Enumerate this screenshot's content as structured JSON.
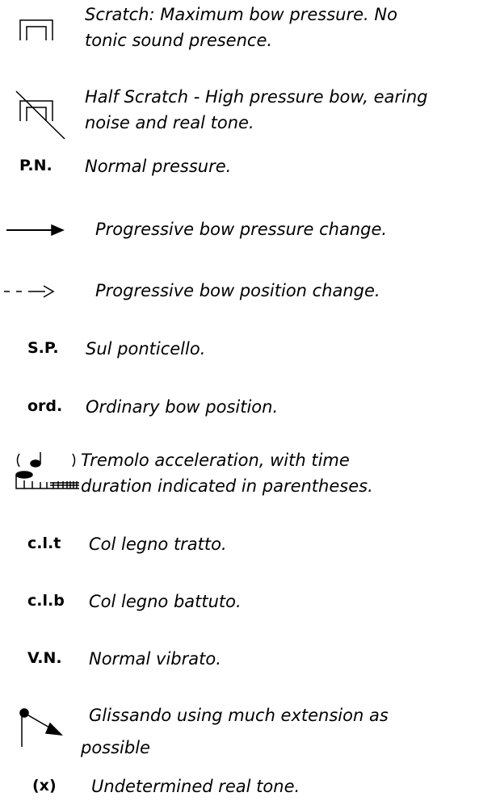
{
  "items": [
    {
      "description": [
        "Scratch: Maximum bow pressure. No",
        "tonic sound presence."
      ]
    },
    {
      "description": [
        "Half Scratch - High pressure bow, earing",
        "noise and real tone."
      ]
    },
    {
      "symbol": "P.N.",
      "description": [
        "Normal pressure."
      ]
    },
    {
      "description": [
        "Progressive bow pressure change."
      ]
    },
    {
      "description": [
        "Progressive bow position change."
      ]
    },
    {
      "symbol": "S.P.",
      "description": [
        "Sul ponticello."
      ]
    },
    {
      "symbol": "ord.",
      "description": [
        "Ordinary bow position."
      ]
    },
    {
      "description": [
        "Tremolo acceleration, with time",
        "duration indicated in parentheses."
      ]
    },
    {
      "symbol": "c.l.t",
      "description": [
        "Col legno tratto."
      ]
    },
    {
      "symbol": "c.l.b",
      "description": [
        "Col legno battuto."
      ]
    },
    {
      "symbol": "V.N.",
      "description": [
        "Normal vibrato."
      ]
    },
    {
      "description": [
        "Glissando using much extension as",
        "possible"
      ]
    },
    {
      "symbol": "(x)",
      "description": [
        "Undetermined real tone."
      ]
    }
  ]
}
